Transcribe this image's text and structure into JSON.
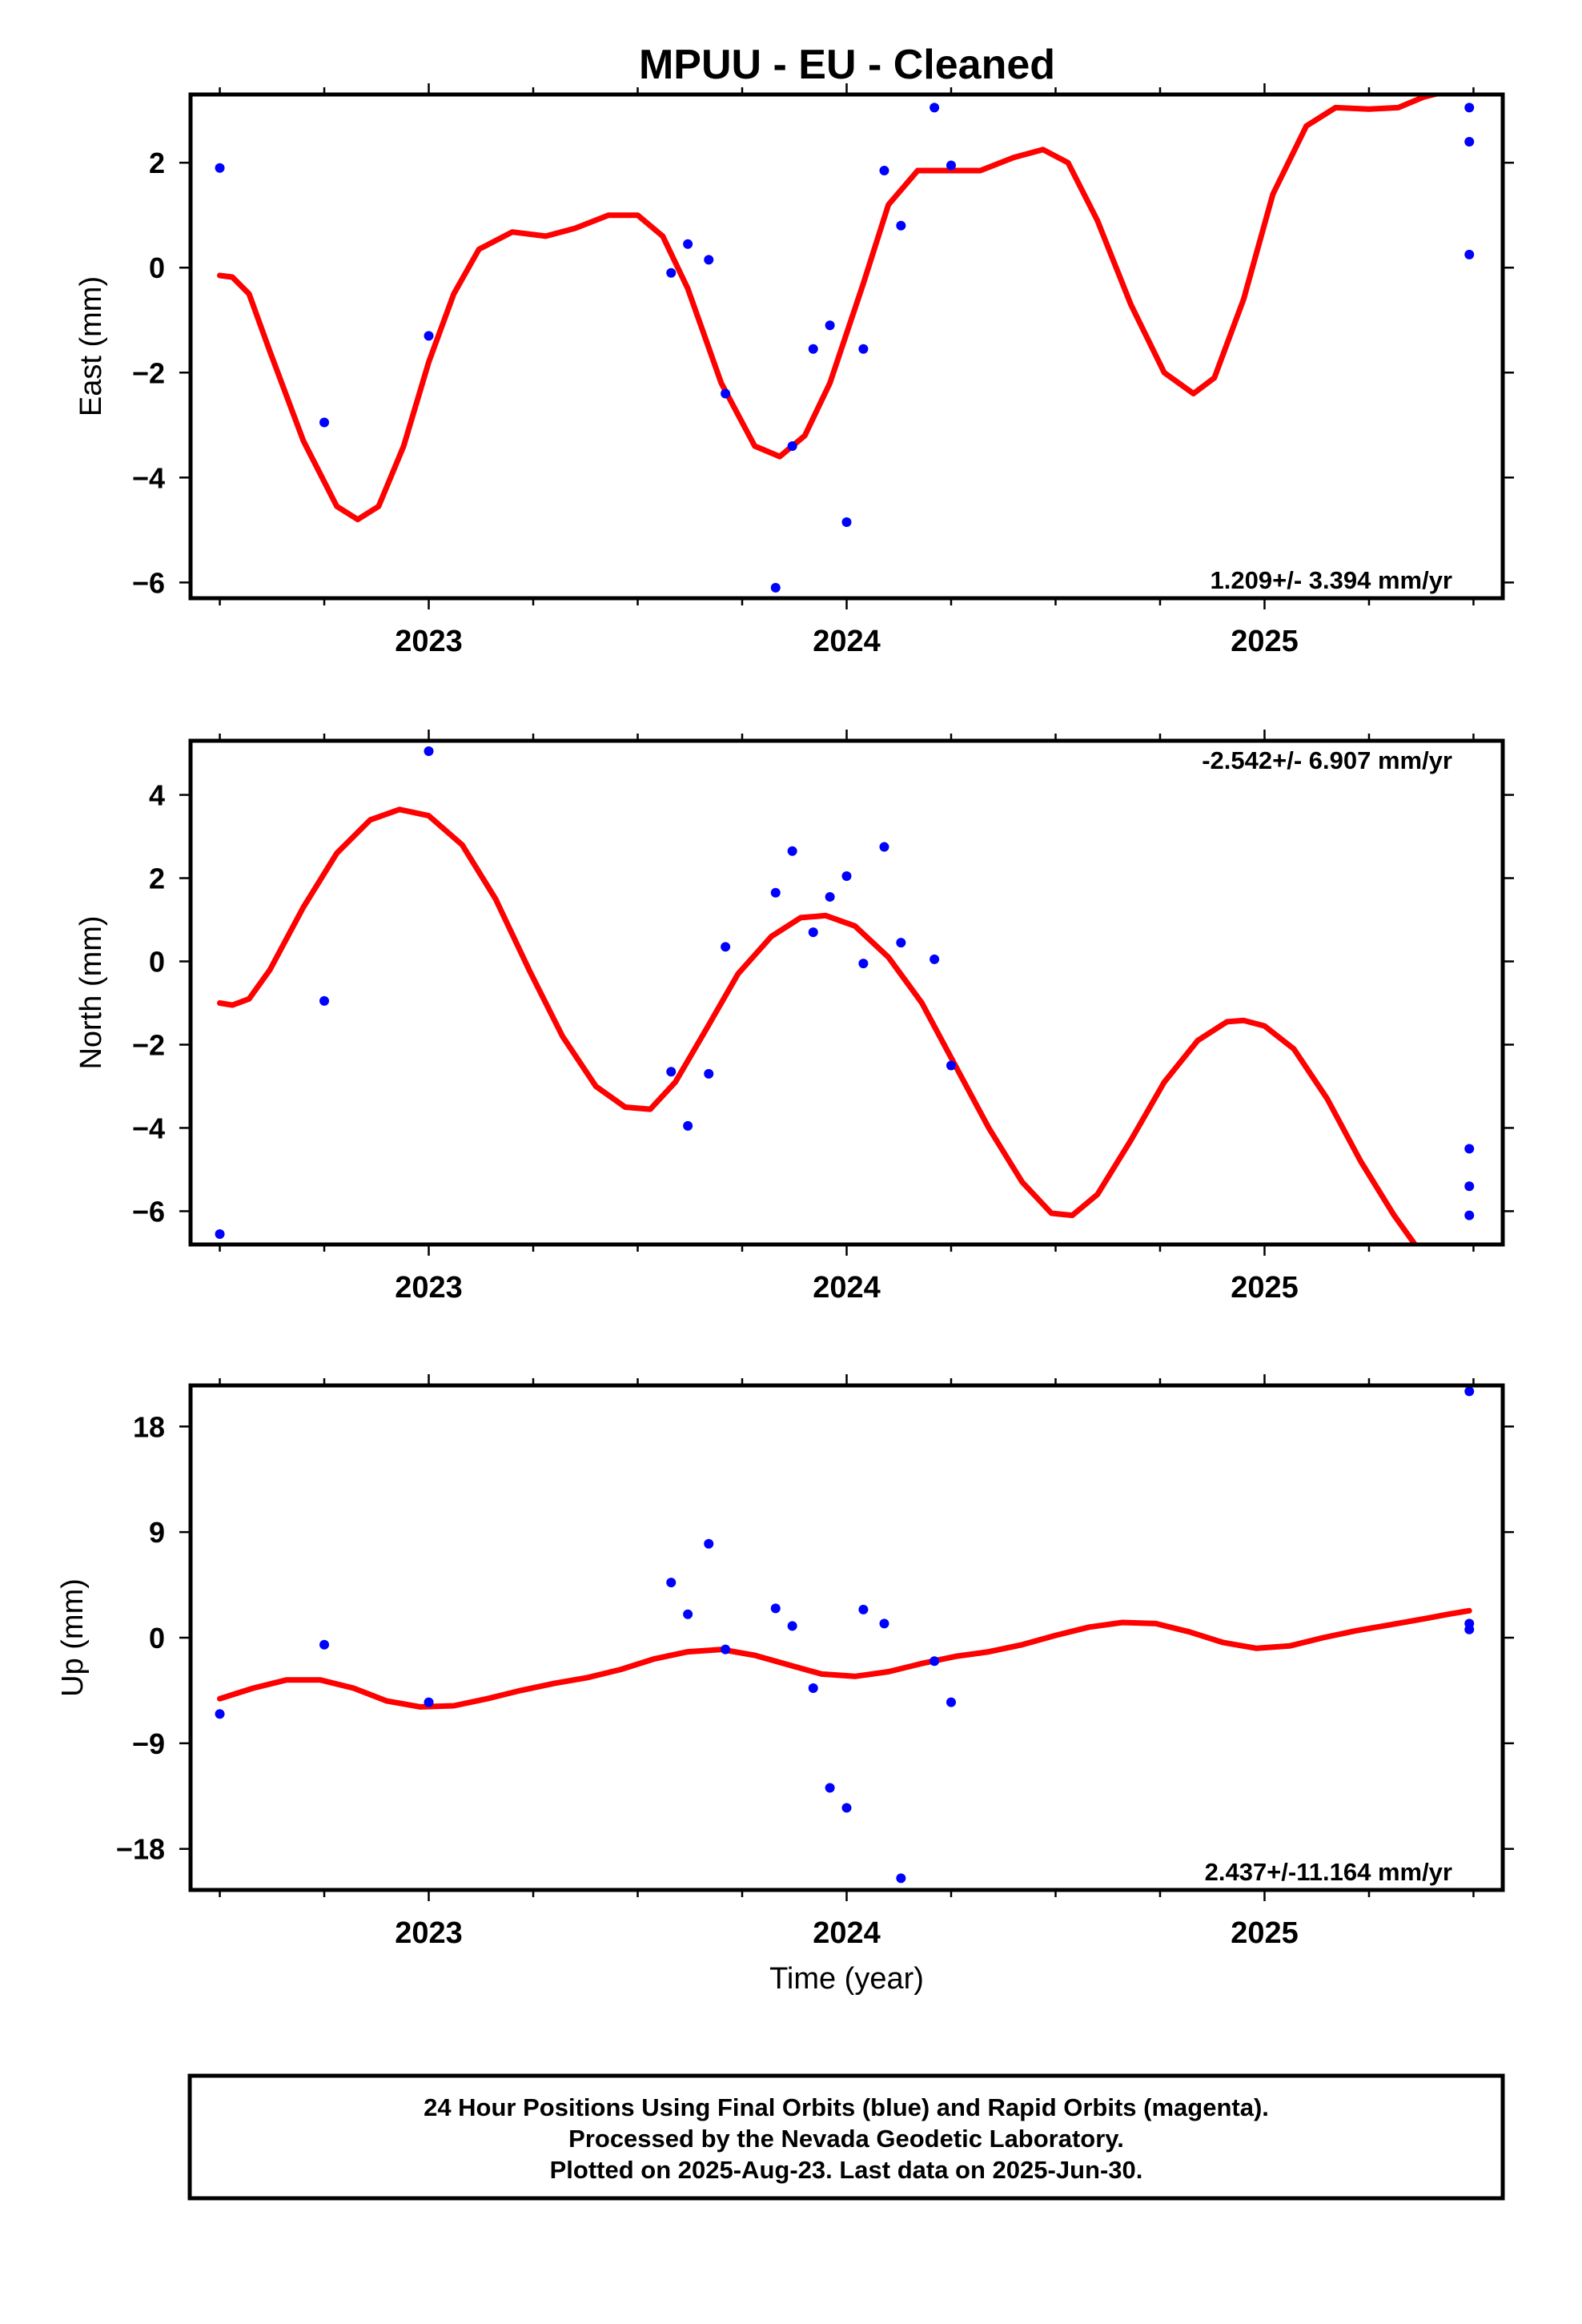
{
  "title": "MPUU  - EU - Cleaned",
  "colors": {
    "points": "#0000ff",
    "fit": "#ff0000",
    "frame": "#000000"
  },
  "chart_data": [
    {
      "type": "scatter",
      "panel": "east",
      "ylabel": "East (mm)",
      "ylim": [
        -6.3,
        3.3
      ],
      "yticks": [
        2,
        0,
        -2,
        -4,
        -6
      ],
      "xlim": [
        2022.43,
        2025.57
      ],
      "xticks": [
        2023,
        2024,
        2025
      ],
      "rate": "1.209+/- 3.394 mm/yr",
      "rate_position": "bottom-right",
      "points": [
        [
          2022.5,
          1.9
        ],
        [
          2022.75,
          -2.95
        ],
        [
          2023.0,
          -1.3
        ],
        [
          2023.58,
          -0.1
        ],
        [
          2023.62,
          0.45
        ],
        [
          2023.67,
          0.15
        ],
        [
          2023.71,
          -2.4
        ],
        [
          2023.83,
          -6.1
        ],
        [
          2023.87,
          -3.4
        ],
        [
          2023.92,
          -1.55
        ],
        [
          2023.96,
          -1.1
        ],
        [
          2024.0,
          -4.85
        ],
        [
          2024.04,
          -1.55
        ],
        [
          2024.09,
          1.85
        ],
        [
          2024.13,
          0.8
        ],
        [
          2024.21,
          3.05
        ],
        [
          2024.25,
          1.95
        ],
        [
          2025.49,
          3.05
        ],
        [
          2025.49,
          2.4
        ],
        [
          2025.49,
          0.25
        ]
      ],
      "fit": [
        [
          2022.5,
          -0.15
        ],
        [
          2022.53,
          -0.18
        ],
        [
          2022.57,
          -0.5
        ],
        [
          2022.62,
          -1.6
        ],
        [
          2022.7,
          -3.3
        ],
        [
          2022.78,
          -4.55
        ],
        [
          2022.83,
          -4.8
        ],
        [
          2022.88,
          -4.55
        ],
        [
          2022.94,
          -3.4
        ],
        [
          2023.0,
          -1.8
        ],
        [
          2023.06,
          -0.5
        ],
        [
          2023.12,
          0.35
        ],
        [
          2023.2,
          0.68
        ],
        [
          2023.28,
          0.6
        ],
        [
          2023.35,
          0.75
        ],
        [
          2023.43,
          1.0
        ],
        [
          2023.5,
          1.0
        ],
        [
          2023.56,
          0.6
        ],
        [
          2023.62,
          -0.4
        ],
        [
          2023.7,
          -2.2
        ],
        [
          2023.78,
          -3.4
        ],
        [
          2023.84,
          -3.6
        ],
        [
          2023.9,
          -3.2
        ],
        [
          2023.96,
          -2.2
        ],
        [
          2024.04,
          -0.3
        ],
        [
          2024.1,
          1.2
        ],
        [
          2024.17,
          1.85
        ],
        [
          2024.25,
          1.85
        ],
        [
          2024.32,
          1.85
        ],
        [
          2024.4,
          2.1
        ],
        [
          2024.47,
          2.25
        ],
        [
          2024.53,
          2.0
        ],
        [
          2024.6,
          0.9
        ],
        [
          2024.68,
          -0.7
        ],
        [
          2024.76,
          -2.0
        ],
        [
          2024.83,
          -2.4
        ],
        [
          2024.88,
          -2.1
        ],
        [
          2024.95,
          -0.6
        ],
        [
          2025.02,
          1.4
        ],
        [
          2025.1,
          2.7
        ],
        [
          2025.17,
          3.05
        ],
        [
          2025.25,
          3.02
        ],
        [
          2025.32,
          3.05
        ],
        [
          2025.38,
          3.25
        ],
        [
          2025.43,
          3.35
        ]
      ]
    },
    {
      "type": "scatter",
      "panel": "north",
      "ylabel": "North (mm)",
      "ylim": [
        -6.8,
        5.3
      ],
      "yticks": [
        4,
        2,
        0,
        -2,
        -4,
        -6
      ],
      "xlim": [
        2022.43,
        2025.57
      ],
      "xticks": [
        2023,
        2024,
        2025
      ],
      "rate": "-2.542+/- 6.907 mm/yr",
      "rate_position": "top-right",
      "points": [
        [
          2022.5,
          -6.55
        ],
        [
          2022.75,
          -0.95
        ],
        [
          2023.0,
          5.05
        ],
        [
          2023.58,
          -2.65
        ],
        [
          2023.62,
          -3.95
        ],
        [
          2023.67,
          -2.7
        ],
        [
          2023.71,
          0.35
        ],
        [
          2023.83,
          1.65
        ],
        [
          2023.87,
          2.65
        ],
        [
          2023.92,
          0.7
        ],
        [
          2023.96,
          1.55
        ],
        [
          2024.0,
          2.05
        ],
        [
          2024.04,
          -0.05
        ],
        [
          2024.09,
          2.75
        ],
        [
          2024.13,
          0.45
        ],
        [
          2024.21,
          0.05
        ],
        [
          2024.25,
          -2.5
        ],
        [
          2025.49,
          -4.5
        ],
        [
          2025.49,
          -5.4
        ],
        [
          2025.49,
          -6.1
        ]
      ],
      "fit": [
        [
          2022.5,
          -1.0
        ],
        [
          2022.53,
          -1.05
        ],
        [
          2022.57,
          -0.9
        ],
        [
          2022.62,
          -0.2
        ],
        [
          2022.7,
          1.3
        ],
        [
          2022.78,
          2.6
        ],
        [
          2022.86,
          3.4
        ],
        [
          2022.93,
          3.65
        ],
        [
          2023.0,
          3.5
        ],
        [
          2023.08,
          2.8
        ],
        [
          2023.16,
          1.5
        ],
        [
          2023.24,
          -0.2
        ],
        [
          2023.32,
          -1.8
        ],
        [
          2023.4,
          -3.0
        ],
        [
          2023.47,
          -3.5
        ],
        [
          2023.53,
          -3.55
        ],
        [
          2023.59,
          -2.9
        ],
        [
          2023.66,
          -1.7
        ],
        [
          2023.74,
          -0.3
        ],
        [
          2023.82,
          0.6
        ],
        [
          2023.89,
          1.05
        ],
        [
          2023.95,
          1.1
        ],
        [
          2024.02,
          0.85
        ],
        [
          2024.1,
          0.1
        ],
        [
          2024.18,
          -1.0
        ],
        [
          2024.26,
          -2.5
        ],
        [
          2024.34,
          -4.0
        ],
        [
          2024.42,
          -5.3
        ],
        [
          2024.49,
          -6.05
        ],
        [
          2024.54,
          -6.1
        ],
        [
          2024.6,
          -5.6
        ],
        [
          2024.68,
          -4.3
        ],
        [
          2024.76,
          -2.9
        ],
        [
          2024.84,
          -1.9
        ],
        [
          2024.91,
          -1.45
        ],
        [
          2024.95,
          -1.42
        ],
        [
          2025.0,
          -1.55
        ],
        [
          2025.07,
          -2.1
        ],
        [
          2025.15,
          -3.3
        ],
        [
          2025.23,
          -4.8
        ],
        [
          2025.31,
          -6.1
        ],
        [
          2025.36,
          -6.8
        ]
      ]
    },
    {
      "type": "scatter",
      "panel": "up",
      "ylabel": "Up (mm)",
      "ylim": [
        -21.5,
        21.5
      ],
      "yticks": [
        18,
        9,
        0,
        -9,
        -18
      ],
      "ytick_labels": [
        "18",
        "9",
        "0",
        "−9",
        "−18"
      ],
      "xlim": [
        2022.43,
        2025.57
      ],
      "xticks": [
        2023,
        2024,
        2025
      ],
      "xlabel": "Time (year)",
      "rate": "2.437+/-11.164 mm/yr",
      "rate_position": "bottom-right",
      "points": [
        [
          2022.5,
          -6.5
        ],
        [
          2022.75,
          -0.6
        ],
        [
          2023.0,
          -5.5
        ],
        [
          2023.58,
          4.7
        ],
        [
          2023.62,
          2.0
        ],
        [
          2023.67,
          8.0
        ],
        [
          2023.71,
          -1.0
        ],
        [
          2023.83,
          2.5
        ],
        [
          2023.87,
          1.0
        ],
        [
          2023.92,
          -4.3
        ],
        [
          2023.96,
          -12.8
        ],
        [
          2024.0,
          -14.5
        ],
        [
          2024.04,
          2.4
        ],
        [
          2024.09,
          1.2
        ],
        [
          2024.13,
          -20.5
        ],
        [
          2024.21,
          -2.0
        ],
        [
          2024.25,
          -5.5
        ],
        [
          2025.49,
          21.0
        ],
        [
          2025.49,
          1.2
        ],
        [
          2025.49,
          0.7
        ]
      ],
      "fit": [
        [
          2022.5,
          -5.2
        ],
        [
          2022.58,
          -4.3
        ],
        [
          2022.66,
          -3.6
        ],
        [
          2022.74,
          -3.6
        ],
        [
          2022.82,
          -4.3
        ],
        [
          2022.9,
          -5.4
        ],
        [
          2022.98,
          -5.9
        ],
        [
          2023.06,
          -5.8
        ],
        [
          2023.14,
          -5.2
        ],
        [
          2023.22,
          -4.5
        ],
        [
          2023.3,
          -3.9
        ],
        [
          2023.38,
          -3.4
        ],
        [
          2023.46,
          -2.7
        ],
        [
          2023.54,
          -1.8
        ],
        [
          2023.62,
          -1.2
        ],
        [
          2023.7,
          -1.0
        ],
        [
          2023.78,
          -1.5
        ],
        [
          2023.86,
          -2.3
        ],
        [
          2023.94,
          -3.1
        ],
        [
          2024.02,
          -3.3
        ],
        [
          2024.1,
          -2.9
        ],
        [
          2024.18,
          -2.2
        ],
        [
          2024.26,
          -1.6
        ],
        [
          2024.34,
          -1.2
        ],
        [
          2024.42,
          -0.6
        ],
        [
          2024.5,
          0.2
        ],
        [
          2024.58,
          0.9
        ],
        [
          2024.66,
          1.3
        ],
        [
          2024.74,
          1.2
        ],
        [
          2024.82,
          0.5
        ],
        [
          2024.9,
          -0.4
        ],
        [
          2024.98,
          -0.9
        ],
        [
          2025.06,
          -0.7
        ],
        [
          2025.14,
          0.0
        ],
        [
          2025.22,
          0.6
        ],
        [
          2025.3,
          1.1
        ],
        [
          2025.38,
          1.6
        ],
        [
          2025.44,
          2.0
        ],
        [
          2025.49,
          2.3
        ]
      ]
    }
  ],
  "footer": {
    "line1": "24 Hour Positions Using Final Orbits (blue) and Rapid Orbits (magenta).",
    "line2": "Processed by the Nevada Geodetic Laboratory.",
    "line3": "Plotted on 2025-Aug-23. Last data on 2025-Jun-30."
  }
}
